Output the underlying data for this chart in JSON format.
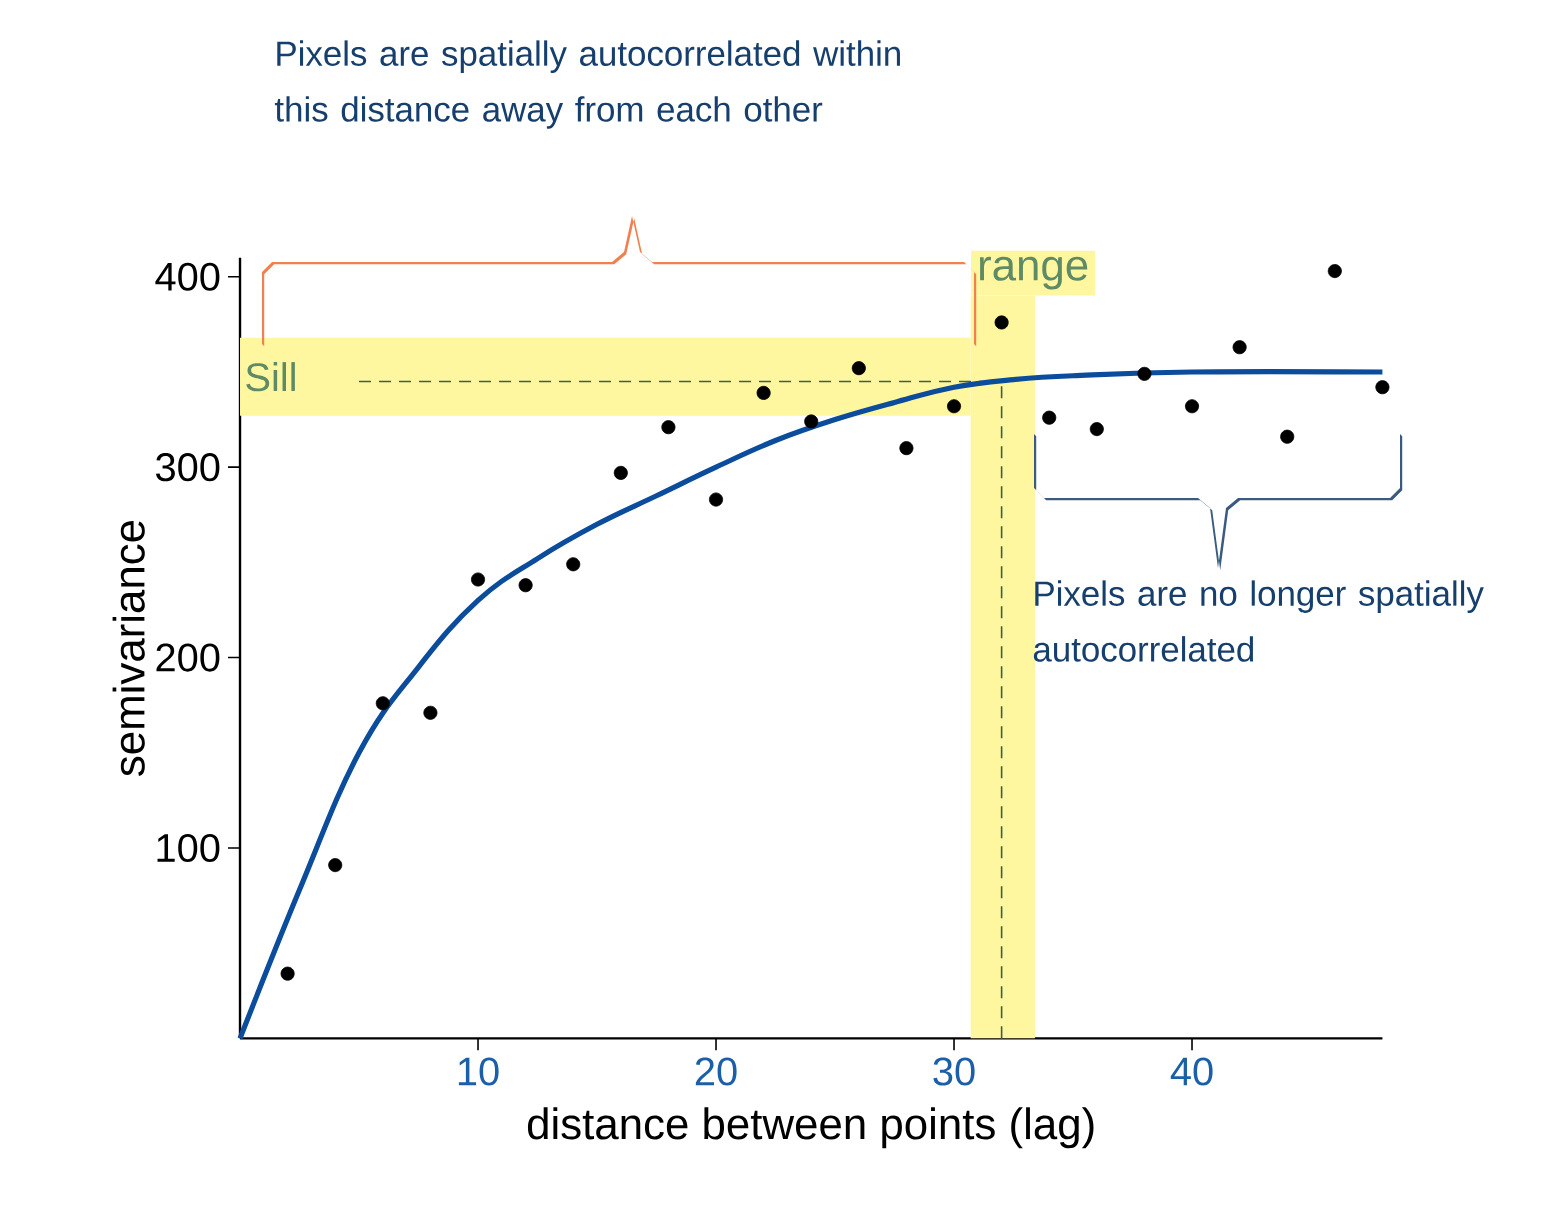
{
  "chart_data": {
    "type": "scatter",
    "xlabel": "distance between points (lag)",
    "ylabel": "semivariance",
    "xlim": [
      0,
      48
    ],
    "ylim": [
      0,
      410
    ],
    "xticks": [
      10,
      20,
      30,
      40
    ],
    "yticks": [
      100,
      200,
      300,
      400
    ],
    "grid": false,
    "series": [
      {
        "color": "#000000",
        "marker": "circle",
        "x": [
          2,
          4,
          6,
          8,
          10,
          12,
          14,
          16,
          18,
          20,
          22,
          24,
          26,
          28,
          30,
          32,
          34,
          36,
          38,
          40,
          42,
          44,
          46,
          48
        ],
        "values": [
          34,
          91,
          176,
          171,
          241,
          238,
          249,
          297,
          321,
          283,
          339,
          324,
          352,
          310,
          332,
          376,
          326,
          320,
          349,
          332,
          363,
          316,
          403,
          342
        ]
      },
      {
        "type": "line",
        "color": "#0b4c9c",
        "marker": "none",
        "line_style": "solid",
        "x": [
          0,
          2.5,
          5,
          7.5,
          10,
          12.5,
          15,
          17.5,
          20,
          22.5,
          25,
          27.5,
          30,
          32.5,
          35,
          40,
          48
        ],
        "values": [
          0,
          78,
          150,
          195,
          230,
          252,
          270,
          285,
          300,
          314,
          325,
          334,
          342,
          346,
          348,
          350,
          350
        ]
      }
    ],
    "bands": [
      {
        "axis": "y",
        "from": 327,
        "to": 368,
        "label": "Sill",
        "color": "#fff7a0"
      },
      {
        "axis": "x",
        "from": 30.7,
        "to": 33.4,
        "label": "range",
        "color": "#fff7a0"
      }
    ],
    "ref_lines": [
      {
        "axis": "y",
        "value": 345,
        "color": "#3f5f3f",
        "line_style": "dashed"
      },
      {
        "axis": "x",
        "value": 32,
        "color": "#3f5f3f",
        "line_style": "dashed"
      }
    ],
    "annotations": [
      "Pixels are spatially autocorrelated within this distance away from each other",
      "Pixels are no longer spatially autocorrelated"
    ]
  }
}
